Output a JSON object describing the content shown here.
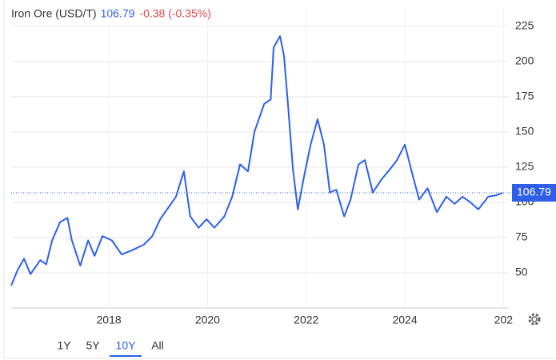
{
  "chart_data": {
    "type": "line",
    "title": "Iron Ore (USD/T)",
    "price": 106.79,
    "change": "-0.38 (-0.35%)",
    "x": [
      2016.02,
      2016.15,
      2016.28,
      2016.41,
      2016.61,
      2016.73,
      2016.85,
      2017.01,
      2017.16,
      2017.25,
      2017.42,
      2017.58,
      2017.71,
      2017.87,
      2018.06,
      2018.26,
      2018.47,
      2018.71,
      2018.88,
      2019.04,
      2019.2,
      2019.36,
      2019.52,
      2019.65,
      2019.82,
      2019.98,
      2020.14,
      2020.34,
      2020.5,
      2020.66,
      2020.82,
      2020.95,
      2021.15,
      2021.28,
      2021.34,
      2021.47,
      2021.55,
      2021.63,
      2021.73,
      2021.83,
      2021.96,
      2022.09,
      2022.23,
      2022.36,
      2022.48,
      2022.61,
      2022.77,
      2022.9,
      2023.06,
      2023.19,
      2023.35,
      2023.52,
      2023.71,
      2023.84,
      2024.0,
      2024.16,
      2024.29,
      2024.46,
      2024.65,
      2024.84,
      2025.01,
      2025.17,
      2025.33,
      2025.49,
      2025.69,
      2025.85,
      2025.98
    ],
    "series": [
      {
        "name": "Iron Ore",
        "color": "#2e5fe6",
        "values": [
          41,
          52,
          60,
          49,
          59,
          56,
          73,
          86,
          89,
          73,
          55,
          73,
          62,
          76,
          73,
          63,
          66,
          70,
          76,
          88,
          96,
          104,
          122,
          90,
          82,
          88,
          82,
          90,
          104,
          127,
          122,
          150,
          170,
          173,
          210,
          218,
          204,
          170,
          124,
          95,
          119,
          141,
          159,
          141,
          107,
          109,
          90,
          102,
          127,
          130,
          107,
          116,
          124,
          130,
          141,
          119,
          102,
          110,
          93,
          104,
          99,
          104,
          100,
          95,
          104,
          105,
          106.79
        ]
      }
    ],
    "xlim": [
      2016.02,
      2026.01
    ],
    "xticks": [
      2018,
      2020,
      2022,
      2024,
      {
        "value": 2026,
        "label": "202"
      }
    ],
    "ylim": [
      25,
      238
    ],
    "yticks": [
      50,
      75,
      100,
      125,
      150,
      175,
      200,
      225
    ],
    "grid": true,
    "ranges": [
      "1Y",
      "5Y",
      "10Y",
      "All"
    ],
    "active_range": 2
  }
}
